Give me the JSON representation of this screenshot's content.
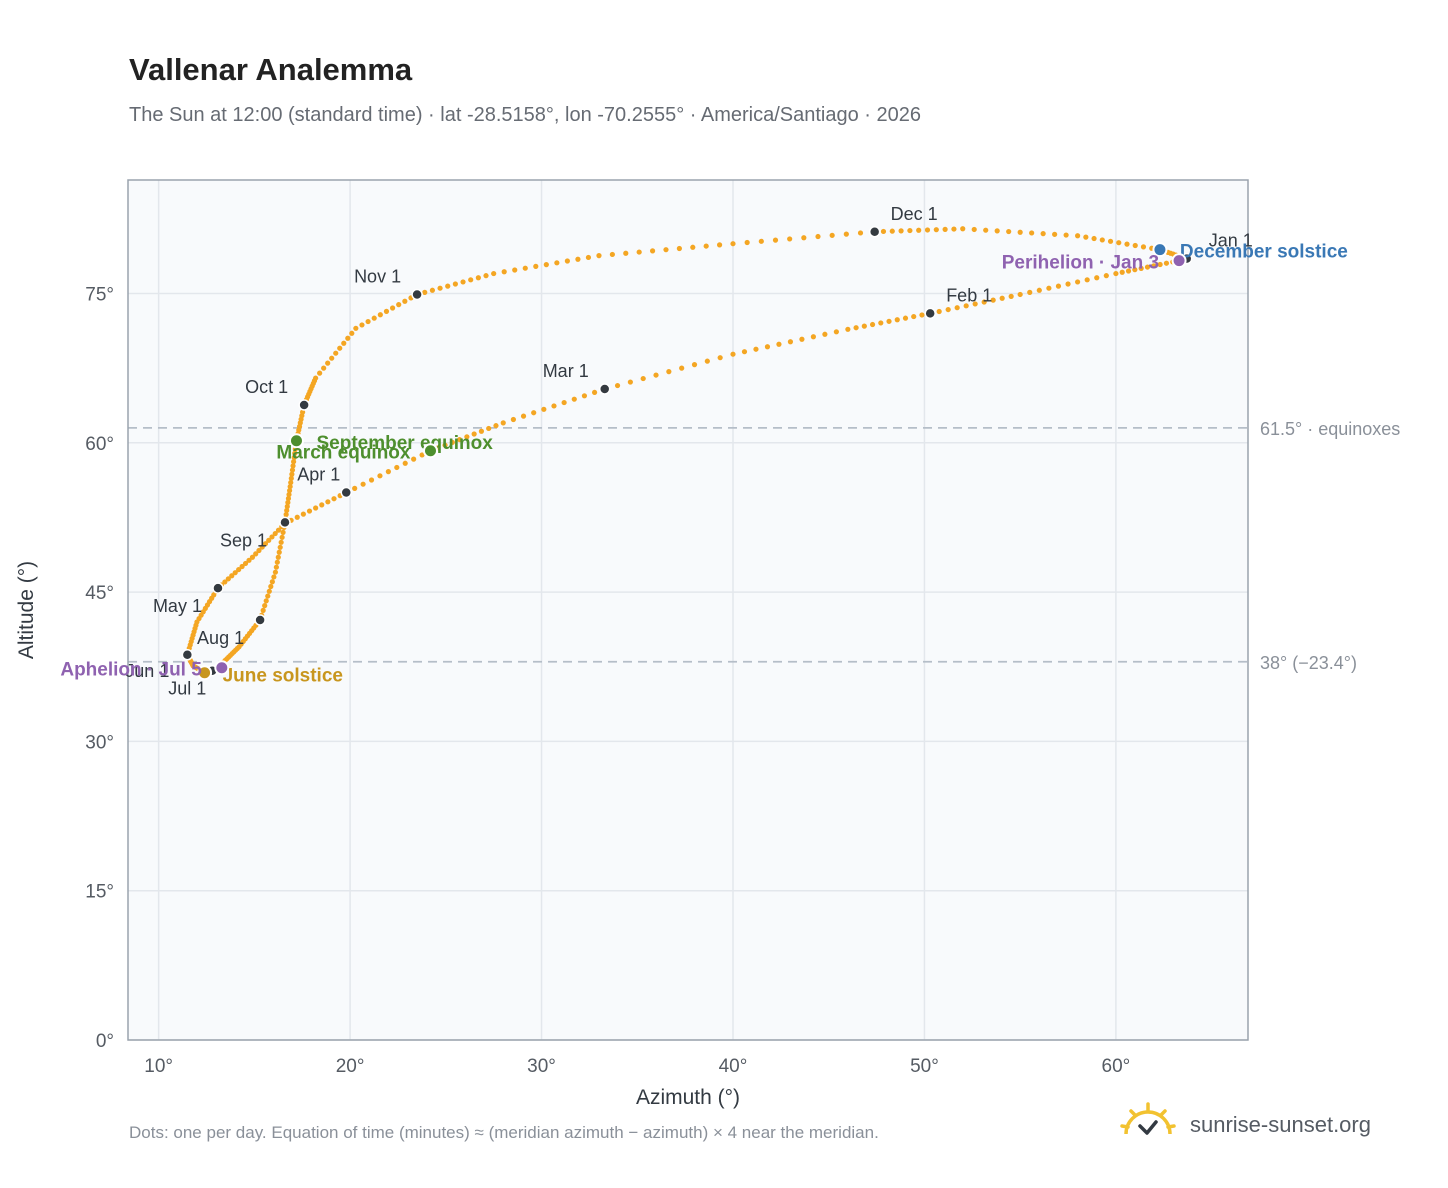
{
  "header": {
    "title": "Vallenar Analemma",
    "subtitle": "The Sun at 12:00 (standard time) · lat -28.5158°, lon -70.2555° · America/Santiago · 2026"
  },
  "chart_data": {
    "type": "scatter",
    "xlabel": "Azimuth (°)",
    "ylabel": "Altitude (°)",
    "xlim": [
      8.4,
      66.9
    ],
    "ylim": [
      0,
      86.4
    ],
    "x_ticks": [
      10,
      20,
      30,
      40,
      50,
      60
    ],
    "y_ticks": [
      0,
      15,
      30,
      45,
      60,
      75
    ],
    "tick_suffix": "°",
    "grid": true,
    "reference_lines": [
      {
        "y": 61.5,
        "label": "61.5° · equinoxes"
      },
      {
        "y": 38,
        "label": "38° (−23.4°)"
      }
    ],
    "path": [
      [
        63.7,
        78.5
      ],
      [
        62.3,
        79.4
      ],
      [
        58.0,
        80.8
      ],
      [
        52.0,
        81.5
      ],
      [
        47.4,
        81.2
      ],
      [
        40.0,
        80.0
      ],
      [
        33.0,
        78.8
      ],
      [
        27.5,
        77.0
      ],
      [
        23.5,
        74.9
      ],
      [
        20.3,
        71.5
      ],
      [
        18.2,
        66.5
      ],
      [
        17.6,
        63.8
      ],
      [
        17.2,
        60.2
      ],
      [
        16.9,
        56.0
      ],
      [
        16.6,
        52.0
      ],
      [
        16.1,
        47.0
      ],
      [
        15.3,
        42.2
      ],
      [
        14.2,
        39.5
      ],
      [
        13.3,
        37.8
      ],
      [
        12.8,
        37.1
      ],
      [
        12.4,
        36.9
      ],
      [
        11.8,
        37.6
      ],
      [
        11.5,
        38.7
      ],
      [
        12.0,
        42.0
      ],
      [
        13.1,
        45.4
      ],
      [
        14.9,
        48.5
      ],
      [
        16.6,
        51.9
      ],
      [
        19.8,
        55.0
      ],
      [
        24.2,
        59.2
      ],
      [
        28.0,
        62.0
      ],
      [
        33.3,
        65.4
      ],
      [
        40.0,
        68.9
      ],
      [
        46.0,
        71.4
      ],
      [
        50.3,
        73.0
      ],
      [
        55.0,
        74.9
      ],
      [
        60.0,
        77.0
      ],
      [
        63.3,
        78.3
      ]
    ],
    "markers": [
      {
        "label": "Jan 1",
        "x": 63.7,
        "y": 78.5
      },
      {
        "label": "Feb 1",
        "x": 50.3,
        "y": 73.0
      },
      {
        "label": "Mar 1",
        "x": 33.3,
        "y": 65.4
      },
      {
        "label": "Apr 1",
        "x": 19.8,
        "y": 55.0
      },
      {
        "label": "May 1",
        "x": 13.1,
        "y": 45.4
      },
      {
        "label": "Jun 1",
        "x": 11.5,
        "y": 38.7
      },
      {
        "label": "Jul 1",
        "x": 12.8,
        "y": 37.1
      },
      {
        "label": "Aug 1",
        "x": 15.3,
        "y": 42.2
      },
      {
        "label": "Sep 1",
        "x": 16.6,
        "y": 52.0
      },
      {
        "label": "Oct 1",
        "x": 17.6,
        "y": 63.8
      },
      {
        "label": "Nov 1",
        "x": 23.5,
        "y": 74.9
      },
      {
        "label": "Dec 1",
        "x": 47.4,
        "y": 81.2
      }
    ],
    "events": [
      {
        "label": "December solstice",
        "x": 62.3,
        "y": 79.4,
        "color": "#3a78b5"
      },
      {
        "label": "Perihelion · Jan 3",
        "x": 63.3,
        "y": 78.3,
        "color": "#8f62b0"
      },
      {
        "label": "September equinox",
        "x": 17.2,
        "y": 60.2,
        "color": "#4e8f2e"
      },
      {
        "label": "March equinox",
        "x": 24.2,
        "y": 59.2,
        "color": "#4e8f2e"
      },
      {
        "label": "June solstice",
        "x": 12.4,
        "y": 36.9,
        "color": "#c8961e"
      },
      {
        "label": "Aphelion · Jul 5",
        "x": 13.3,
        "y": 37.4,
        "color": "#8f62b0"
      }
    ],
    "colors": {
      "path": "#f4a623",
      "marker": "#343a40",
      "grid": "#e3e7ec",
      "plot_bg": "#f8fafc",
      "frame": "#9aa3ad",
      "refline": "#b5bec8"
    }
  },
  "footer": {
    "note": "Dots: one per day. Equation of time (minutes) ≈ (meridian azimuth − azimuth) × 4 near the meridian.",
    "brand": "sunrise-sunset.org"
  }
}
